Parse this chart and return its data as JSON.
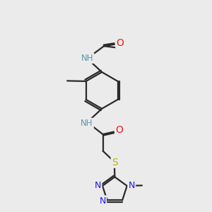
{
  "bg": "#ebebeb",
  "bond_color": "#2a2a2a",
  "bond_lw": 1.6,
  "dbo": 0.055,
  "colors": {
    "N": "#1a1aee",
    "O": "#ee1a1a",
    "S": "#b8b800",
    "NH": "#5a9aaa",
    "C": "#2a2a2a"
  },
  "fs": 8.5,
  "fs_small": 7.5
}
